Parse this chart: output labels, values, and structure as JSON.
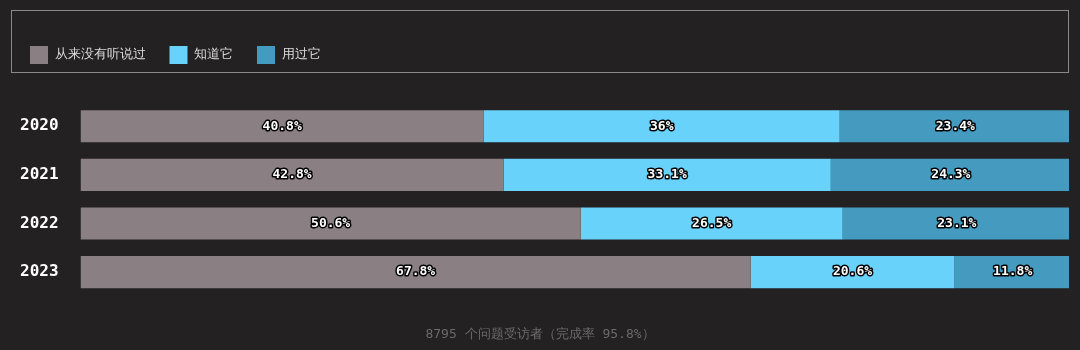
{
  "chart_data": {
    "type": "bar",
    "orientation": "horizontal",
    "stacked": true,
    "legend": "top",
    "tick_labels": "y",
    "xlim": [
      0,
      100
    ],
    "categories": [
      "2020",
      "2021",
      "2022",
      "2023"
    ],
    "series": [
      {
        "name": "从来没有听说过",
        "color": "#8a7f82",
        "values": [
          40.8,
          42.8,
          50.6,
          67.8
        ],
        "value_labels": [
          "40.8%",
          "42.8%",
          "50.6%",
          "67.8%"
        ]
      },
      {
        "name": "知道它",
        "color": "#69d2fb",
        "values": [
          36,
          33.1,
          26.5,
          20.6
        ],
        "value_labels": [
          "36%",
          "33.1%",
          "26.5%",
          "20.6%"
        ]
      },
      {
        "name": "用过它",
        "color": "#459bbf",
        "values": [
          23.4,
          24.3,
          23.1,
          11.8
        ],
        "value_labels": [
          "23.4%",
          "24.3%",
          "23.1%",
          "11.8%"
        ]
      }
    ],
    "annotations": [
      "8795 个问题受访者（完成率 95.8%）"
    ]
  }
}
